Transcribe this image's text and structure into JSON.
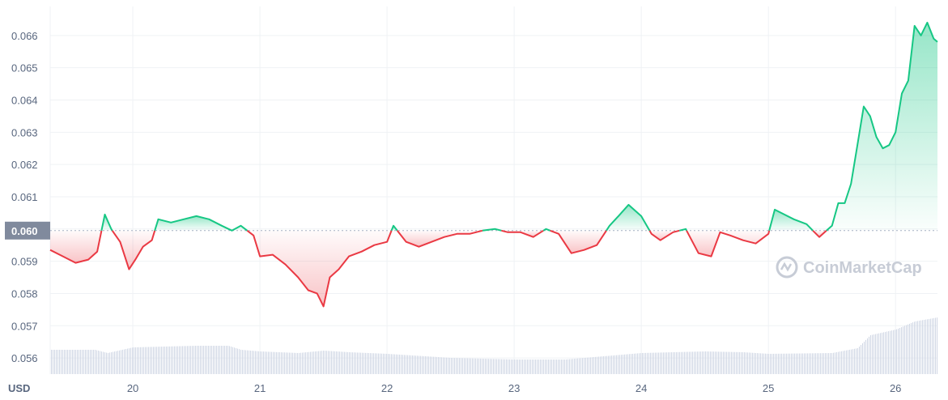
{
  "chart_data": {
    "type": "area",
    "currency_label": "USD",
    "y_ticks": [
      "0.056",
      "0.057",
      "0.058",
      "0.059",
      "0.060",
      "0.061",
      "0.062",
      "0.063",
      "0.064",
      "0.065",
      "0.066"
    ],
    "x_ticks": [
      "20",
      "21",
      "22",
      "23",
      "24",
      "25",
      "26"
    ],
    "ylim": [
      0.0555,
      0.0669
    ],
    "xlim": [
      19.35,
      26.33
    ],
    "reference_price": 0.05995,
    "reference_price_label": "0.060",
    "colors": {
      "up": "#16c784",
      "down": "#ea3943",
      "grid": "#eff2f5",
      "volume": "#cfd6e4"
    },
    "watermark": "CoinMarketCap",
    "series": [
      {
        "x": [
          19.35,
          19.45,
          19.55,
          19.65,
          19.72,
          19.78,
          19.83,
          19.9,
          19.97,
          20.02,
          20.08,
          20.15,
          20.2,
          20.3,
          20.4,
          20.5,
          20.6,
          20.7,
          20.78,
          20.85,
          20.95,
          21.0,
          21.1,
          21.2,
          21.3,
          21.38,
          21.45,
          21.5,
          21.55,
          21.62,
          21.7,
          21.8,
          21.9,
          22.0,
          22.05,
          22.15,
          22.25,
          22.35,
          22.45,
          22.55,
          22.65,
          22.75,
          22.85,
          22.95,
          23.05,
          23.15,
          23.25,
          23.35,
          23.45,
          23.55,
          23.65,
          23.75,
          23.82,
          23.9,
          24.0,
          24.08,
          24.15,
          24.25,
          24.35,
          24.45,
          24.55,
          24.62,
          24.7,
          24.8,
          24.9,
          25.0,
          25.05,
          25.1,
          25.2,
          25.3,
          25.4,
          25.5,
          25.55,
          25.6,
          25.65,
          25.7,
          25.75,
          25.8,
          25.85,
          25.9,
          25.95,
          26.0,
          26.05,
          26.1,
          26.15,
          26.2,
          26.25,
          26.3,
          26.33
        ],
        "values": [
          0.05935,
          0.05915,
          0.05895,
          0.05905,
          0.0593,
          0.06045,
          0.06,
          0.0596,
          0.05875,
          0.05905,
          0.05945,
          0.05965,
          0.0603,
          0.0602,
          0.0603,
          0.0604,
          0.0603,
          0.0601,
          0.05995,
          0.0601,
          0.0598,
          0.05915,
          0.0592,
          0.0589,
          0.0585,
          0.0581,
          0.058,
          0.0576,
          0.0585,
          0.05875,
          0.05915,
          0.0593,
          0.0595,
          0.0596,
          0.0601,
          0.0596,
          0.05945,
          0.0596,
          0.05975,
          0.05985,
          0.05985,
          0.05995,
          0.06,
          0.0599,
          0.0599,
          0.05975,
          0.06,
          0.05985,
          0.05925,
          0.05935,
          0.0595,
          0.0601,
          0.0604,
          0.06075,
          0.0604,
          0.05985,
          0.05965,
          0.0599,
          0.06,
          0.05925,
          0.05915,
          0.0599,
          0.0598,
          0.05965,
          0.05955,
          0.05985,
          0.0606,
          0.0605,
          0.0603,
          0.06015,
          0.05975,
          0.0601,
          0.0608,
          0.0608,
          0.0614,
          0.0626,
          0.0638,
          0.0635,
          0.06285,
          0.0625,
          0.0626,
          0.063,
          0.0642,
          0.0646,
          0.0663,
          0.066,
          0.0664,
          0.0659,
          0.0658
        ]
      }
    ],
    "volume": {
      "x": [
        19.35,
        19.7,
        19.8,
        20.0,
        20.5,
        20.75,
        20.85,
        21.0,
        21.3,
        21.5,
        21.7,
        22.0,
        22.5,
        23.0,
        23.4,
        23.7,
        24.0,
        24.5,
        24.8,
        25.0,
        25.5,
        25.7,
        25.8,
        26.0,
        26.15,
        26.33
      ],
      "values": [
        0.3,
        0.3,
        0.26,
        0.33,
        0.35,
        0.35,
        0.3,
        0.28,
        0.26,
        0.29,
        0.27,
        0.25,
        0.2,
        0.18,
        0.18,
        0.22,
        0.26,
        0.28,
        0.27,
        0.25,
        0.26,
        0.32,
        0.48,
        0.55,
        0.65,
        0.7
      ]
    }
  }
}
